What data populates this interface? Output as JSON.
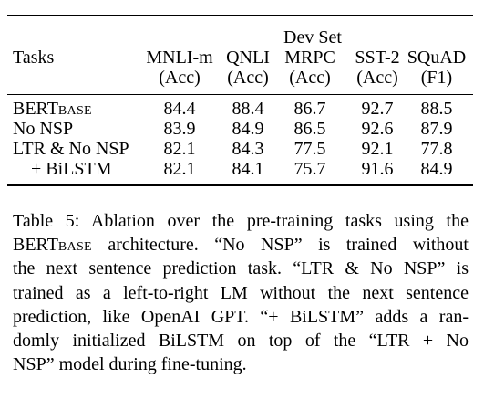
{
  "table": {
    "header_group": "Dev Set",
    "tasks_label": "Tasks",
    "columns": [
      {
        "name": "MNLI-m",
        "metric": "(Acc)"
      },
      {
        "name": "QNLI",
        "metric": "(Acc)"
      },
      {
        "name": "MRPC",
        "metric": "(Acc)"
      },
      {
        "name": "SST-2",
        "metric": "(Acc)"
      },
      {
        "name": "SQuAD",
        "metric": "(F1)"
      }
    ],
    "rows": [
      {
        "label": "BERT",
        "label_sub": "BASE",
        "values": [
          "84.4",
          "88.4",
          "86.7",
          "92.7",
          "88.5"
        ]
      },
      {
        "label": "No NSP",
        "label_sub": "",
        "values": [
          "83.9",
          "84.9",
          "86.5",
          "92.6",
          "87.9"
        ]
      },
      {
        "label": "LTR & No NSP",
        "label_sub": "",
        "values": [
          "82.1",
          "84.3",
          "77.5",
          "92.1",
          "77.8"
        ]
      },
      {
        "label": "+ BiLSTM",
        "label_sub": "",
        "values": [
          "82.1",
          "84.1",
          "75.7",
          "91.6",
          "84.9"
        ]
      }
    ]
  },
  "caption": {
    "line1": "Table 5: Ablation over the pre-training tasks using the",
    "line2_a": "BERT",
    "line2_sub": "BASE",
    "line2_b": " architecture. “No NSP” is trained without",
    "line3": "the next sentence prediction task. “LTR & No NSP” is",
    "line4": "trained as a left-to-right LM without the next sentence",
    "line5": "prediction, like OpenAI GPT. “+ BiLSTM” adds a ran-",
    "line6": "domly initialized BiLSTM on top of the “LTR + No",
    "line7": "NSP” model during fine-tuning."
  }
}
